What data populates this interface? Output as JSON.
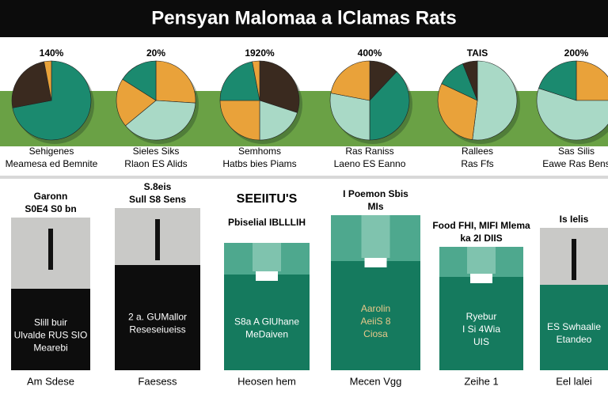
{
  "header": {
    "title": "Pensyan Malomaa a lClamas Rats"
  },
  "pies": [
    {
      "label": "140%",
      "caption": [
        "Sehigenes",
        "Meamesa ed Bemnite"
      ],
      "values": [
        72,
        25,
        3
      ],
      "colors": [
        "#1b8a6f",
        "#3a2a1f",
        "#e9a23a"
      ]
    },
    {
      "label": "20%",
      "caption": [
        "Sieles Siks",
        "Rlaon ES Alids"
      ],
      "values": [
        26,
        38,
        20,
        16
      ],
      "colors": [
        "#e9a23a",
        "#a9d9c6",
        "#e9a23a",
        "#1b8a6f"
      ]
    },
    {
      "label": "1920%",
      "caption": [
        "Semhoms",
        "Hatbs bies Piams"
      ],
      "values": [
        30,
        20,
        25,
        22,
        3
      ],
      "colors": [
        "#3a2a1f",
        "#a9d9c6",
        "#e9a23a",
        "#1b8a6f",
        "#e9a23a"
      ]
    },
    {
      "label": "400%",
      "caption": [
        "Ras Raniss",
        "Laeno ES Eanno"
      ],
      "values": [
        12,
        38,
        28,
        22
      ],
      "colors": [
        "#3a2a1f",
        "#1b8a6f",
        "#a9d9c6",
        "#e9a23a"
      ]
    },
    {
      "label": "TAIS",
      "caption": [
        "Rallees",
        "Ras Ffs"
      ],
      "values": [
        52,
        30,
        12,
        6
      ],
      "colors": [
        "#a9d9c6",
        "#e9a23a",
        "#1b8a6f",
        "#3a2a1f"
      ]
    },
    {
      "label": "200%",
      "caption": [
        "Sas Silis",
        "Eawe Ras Bens"
      ],
      "values": [
        25,
        55,
        20
      ],
      "colors": [
        "#e9a23a",
        "#a9d9c6",
        "#1b8a6f"
      ]
    }
  ],
  "panels": [
    {
      "header": [
        "Garonn",
        "S0E4 S0 bn"
      ],
      "body": [
        "Slill buir",
        "Ulvalde RUS SIO",
        "Mearebi"
      ],
      "footer": "Am Sdese"
    },
    {
      "header": [
        "S.8eis",
        "Sull S8 Sens"
      ],
      "body": [
        "2 a. GUMallor",
        "Reseseiueiss"
      ],
      "footer": "Faesess"
    },
    {
      "header": [
        "SEEIITU'S",
        "Pbiselial IBLLLIH"
      ],
      "body": [
        "S8a A GlUhane",
        "MeDaiven"
      ],
      "footer": "Heosen hem"
    },
    {
      "header": [
        "I Poemon Sbis",
        "MIs"
      ],
      "body": [
        "Aarolin",
        "AeiiS 8",
        "Ciosa"
      ],
      "footer": "Mecen Vgg"
    },
    {
      "header": [
        "Food FHI, MIFI Mlema",
        "ka 2I DIIS"
      ],
      "body": [
        "Ryebur",
        "I Si 4Wia",
        "UIS"
      ],
      "footer": "Zeihe 1"
    },
    {
      "header": [
        "Is Ielis"
      ],
      "body": [
        "ES Swhaalie",
        "Etandeo"
      ],
      "footer": "Eel lalei"
    }
  ]
}
